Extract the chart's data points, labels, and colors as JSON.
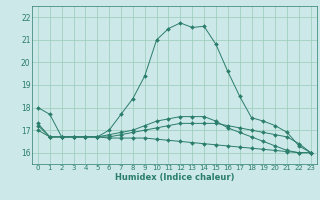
{
  "xlabel": "Humidex (Indice chaleur)",
  "background_color": "#cce8e8",
  "grid_color": "#99ccbb",
  "line_color": "#2a7d6b",
  "xlim": [
    -0.5,
    23.5
  ],
  "ylim": [
    15.5,
    22.5
  ],
  "yticks": [
    16,
    17,
    18,
    19,
    20,
    21,
    22
  ],
  "xticks": [
    0,
    1,
    2,
    3,
    4,
    5,
    6,
    7,
    8,
    9,
    10,
    11,
    12,
    13,
    14,
    15,
    16,
    17,
    18,
    19,
    20,
    21,
    22,
    23
  ],
  "lines": [
    {
      "x": [
        0,
        1,
        2,
        3,
        4,
        5,
        6,
        7,
        8,
        9,
        10,
        11,
        12,
        13,
        14,
        15,
        16,
        17,
        18,
        19,
        20,
        21,
        22,
        23
      ],
      "y": [
        18.0,
        17.7,
        16.7,
        16.7,
        16.7,
        16.7,
        17.0,
        17.7,
        18.4,
        19.4,
        21.0,
        21.5,
        21.75,
        21.55,
        21.6,
        20.8,
        19.6,
        18.5,
        17.55,
        17.4,
        17.2,
        16.9,
        16.3,
        16.0
      ]
    },
    {
      "x": [
        0,
        1,
        2,
        3,
        4,
        5,
        6,
        7,
        8,
        9,
        10,
        11,
        12,
        13,
        14,
        15,
        16,
        17,
        18,
        19,
        20,
        21,
        22,
        23
      ],
      "y": [
        17.3,
        16.7,
        16.7,
        16.7,
        16.7,
        16.7,
        16.8,
        16.9,
        17.0,
        17.2,
        17.4,
        17.5,
        17.6,
        17.6,
        17.6,
        17.4,
        17.1,
        16.9,
        16.7,
        16.5,
        16.3,
        16.1,
        16.0,
        16.0
      ]
    },
    {
      "x": [
        0,
        1,
        2,
        3,
        4,
        5,
        6,
        7,
        8,
        9,
        10,
        11,
        12,
        13,
        14,
        15,
        16,
        17,
        18,
        19,
        20,
        21,
        22,
        23
      ],
      "y": [
        17.2,
        16.7,
        16.7,
        16.7,
        16.7,
        16.7,
        16.7,
        16.8,
        16.9,
        17.0,
        17.1,
        17.2,
        17.3,
        17.3,
        17.3,
        17.3,
        17.2,
        17.1,
        17.0,
        16.9,
        16.8,
        16.7,
        16.4,
        16.0
      ]
    },
    {
      "x": [
        0,
        1,
        2,
        3,
        4,
        5,
        6,
        7,
        8,
        9,
        10,
        11,
        12,
        13,
        14,
        15,
        16,
        17,
        18,
        19,
        20,
        21,
        22,
        23
      ],
      "y": [
        17.0,
        16.7,
        16.7,
        16.7,
        16.7,
        16.7,
        16.65,
        16.65,
        16.65,
        16.65,
        16.6,
        16.55,
        16.5,
        16.45,
        16.4,
        16.35,
        16.3,
        16.25,
        16.2,
        16.15,
        16.1,
        16.05,
        16.0,
        16.0
      ]
    }
  ]
}
